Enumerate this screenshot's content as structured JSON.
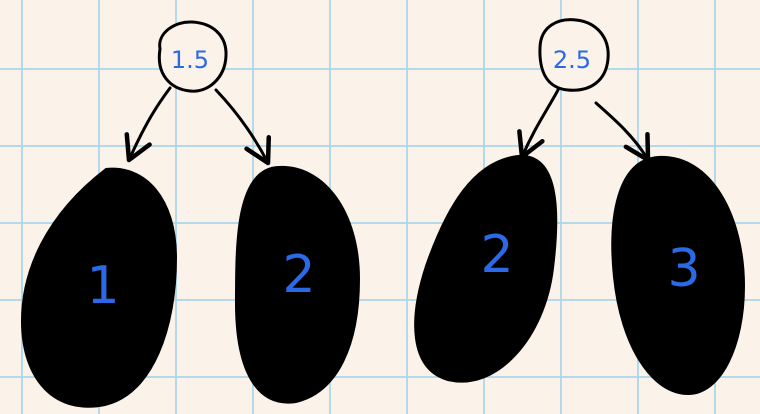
{
  "colors": {
    "background": "#fbf2ea",
    "grid": "#abd6eb",
    "ink": "#000000",
    "label": "#2c69e6"
  },
  "trees": [
    {
      "root": "1.5",
      "leaves": [
        "1",
        "2"
      ]
    },
    {
      "root": "2.5",
      "leaves": [
        "2",
        "3"
      ]
    }
  ]
}
